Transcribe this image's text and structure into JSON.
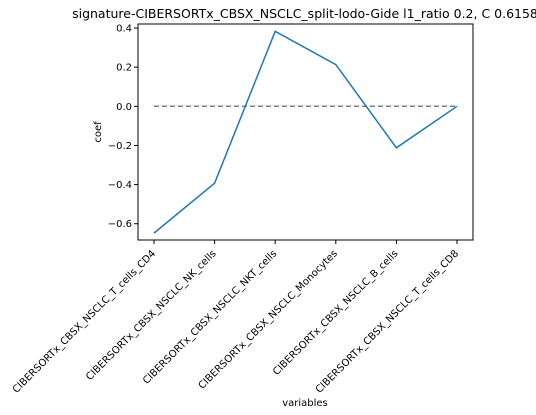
{
  "chart_data": {
    "type": "line",
    "title": "signature-CIBERSORTx_CBSX_NSCLC_split-lodo-Gide l1_ratio 0.2, C 0.6158",
    "xlabel": "variables",
    "ylabel": "coef",
    "categories": [
      "CIBERSORTx_CBSX_NSCLC_T_cells_CD4",
      "CIBERSORTx_CBSX_NSCLC_NK_cells",
      "CIBERSORTx_CBSX_NSCLC_NKT_cells",
      "CIBERSORTx_CBSX_NSCLC_Monocytes",
      "CIBERSORTx_CBSX_NSCLC_B_cells",
      "CIBERSORTx_CBSX_NSCLC_T_cells_CD8"
    ],
    "series": [
      {
        "values": [
          -0.648,
          -0.393,
          0.383,
          0.213,
          -0.212,
          0.0
        ],
        "color": "#1f77b4",
        "style": "solid"
      },
      {
        "values": [
          0.0,
          0.0,
          0.0,
          0.0,
          0.0,
          0.0
        ],
        "color": "#808080",
        "style": "dashed"
      }
    ],
    "ylim": [
      -0.6832,
      0.4206
    ],
    "yticks": [
      -0.6,
      -0.4,
      -0.2,
      0.0,
      0.2,
      0.4
    ],
    "ytick_labels": [
      "−0.6",
      "−0.4",
      "−0.2",
      "0.0",
      "0.2",
      "0.4"
    ],
    "grid": false
  }
}
